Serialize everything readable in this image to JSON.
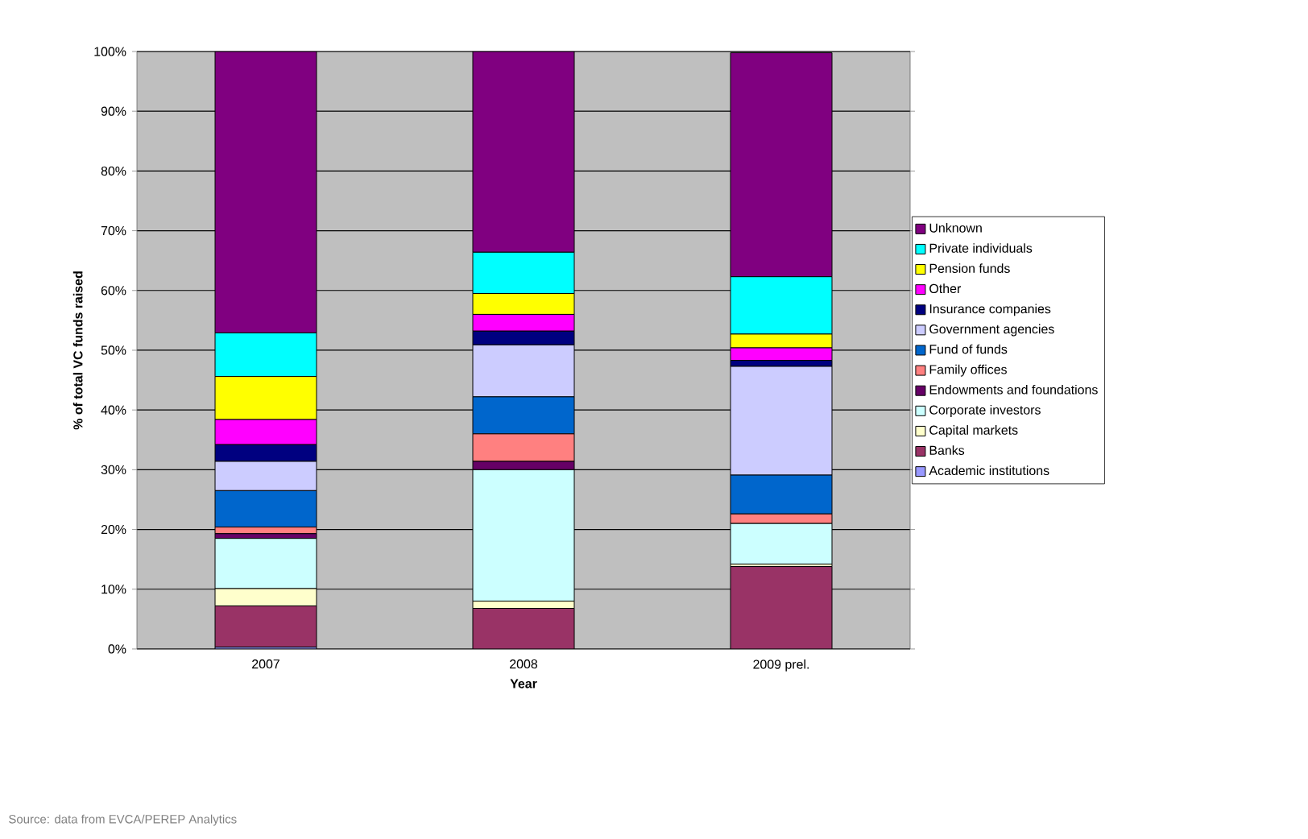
{
  "chart_data": {
    "type": "bar",
    "stacked": true,
    "xlabel": "Year",
    "ylabel": "% of total VC funds raised",
    "categories": [
      "2007",
      "2008",
      "2009 prel."
    ],
    "ylim": [
      0,
      100
    ],
    "yticks": [
      {
        "value": 0,
        "label": "0%"
      },
      {
        "value": 10,
        "label": "10%"
      },
      {
        "value": 20,
        "label": "20%"
      },
      {
        "value": 30,
        "label": "30%"
      },
      {
        "value": 40,
        "label": "40%"
      },
      {
        "value": 50,
        "label": "50%"
      },
      {
        "value": 60,
        "label": "60%"
      },
      {
        "value": 70,
        "label": "70%"
      },
      {
        "value": 80,
        "label": "80%"
      },
      {
        "value": 90,
        "label": "90%"
      },
      {
        "value": 100,
        "label": "100%"
      }
    ],
    "grid": "y",
    "legend": "right",
    "annotations": [
      "Source: data from EVCA/PEREP Analytics"
    ],
    "series": [
      {
        "name": "Academic institutions",
        "color": "#9999ff",
        "values": [
          0.3,
          0,
          0
        ]
      },
      {
        "name": "Banks",
        "color": "#993366",
        "values": [
          6.9,
          6.8,
          13.8
        ]
      },
      {
        "name": "Capital markets",
        "color": "#ffffcc",
        "values": [
          2.9,
          1.2,
          0.4
        ]
      },
      {
        "name": "Corporate investors",
        "color": "#ccffff",
        "values": [
          8.4,
          22.0,
          6.8
        ]
      },
      {
        "name": "Endowments and foundations",
        "color": "#660066",
        "values": [
          0.8,
          1.4,
          null
        ]
      },
      {
        "name": "Family offices",
        "color": "#ff8080",
        "values": [
          1.1,
          4.6,
          1.6
        ]
      },
      {
        "name": "Fund of funds",
        "color": "#0066cc",
        "values": [
          6.1,
          6.2,
          6.5
        ]
      },
      {
        "name": "Government agencies",
        "color": "#ccccff",
        "values": [
          4.9,
          8.7,
          18.2
        ]
      },
      {
        "name": "Insurance companies",
        "color": "#000080",
        "values": [
          2.8,
          2.3,
          1.0
        ]
      },
      {
        "name": "Other",
        "color": "#ff00ff",
        "values": [
          4.2,
          2.8,
          2.1
        ]
      },
      {
        "name": "Pension funds",
        "color": "#ffff00",
        "values": [
          7.2,
          3.5,
          2.3
        ]
      },
      {
        "name": "Private individuals",
        "color": "#00ffff",
        "values": [
          7.3,
          6.9,
          9.6
        ]
      },
      {
        "name": "Unknown",
        "color": "#800080",
        "values": [
          47.1,
          33.6,
          37.5
        ]
      }
    ]
  }
}
